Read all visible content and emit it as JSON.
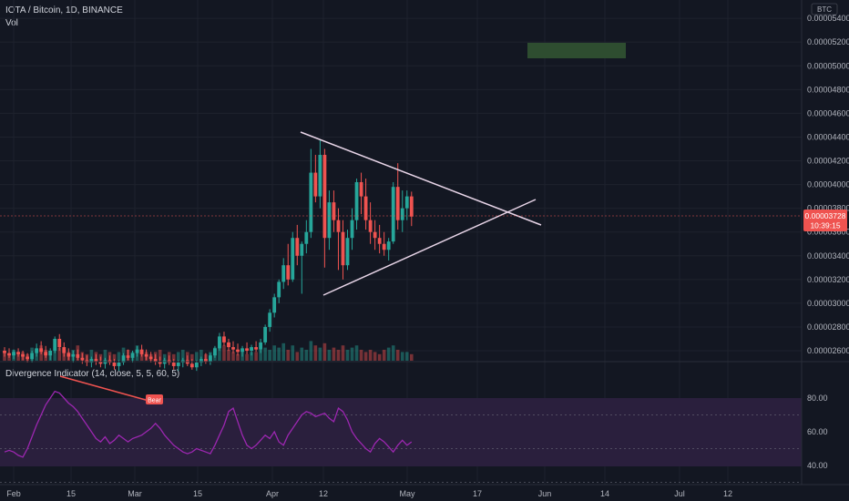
{
  "header": {
    "symbol": "IOTA / Bitcoin, 1D, BINANCE",
    "volume_label": "Vol",
    "currency": "BTC"
  },
  "price_badge": {
    "price": "0.00003728",
    "countdown": "10:39:15"
  },
  "indicator": {
    "label": "Divergence Indicator (14, close, 5, 5, 60, 5)",
    "signal_label": "Bear"
  },
  "colors": {
    "up": "#26a69a",
    "down": "#ef5350",
    "osc_line": "#9c27b0",
    "trendline": "#e8d5e8",
    "divergence": "#ef5350",
    "target_zone": "#2e4d30"
  },
  "chart_data": [
    {
      "type": "candlestick",
      "x_ticks": [
        "Feb",
        "15",
        "Mar",
        "15",
        "Apr",
        "12",
        "May",
        "17",
        "Jun",
        "14",
        "Jul",
        "12"
      ],
      "y_ticks": [
        "0.00002600",
        "0.00002800",
        "0.00003000",
        "0.00003200",
        "0.00003400",
        "0.00003600",
        "0.00003800",
        "0.00004000",
        "0.00004200",
        "0.00004400",
        "0.00004600",
        "0.00004800",
        "0.00005000",
        "0.00005200",
        "0.00005400"
      ],
      "ylim": [
        2.55e-05,
        5.45e-05
      ],
      "day_index_note": "day 0 = Feb 1",
      "candles": [
        {
          "d": 0,
          "o": 2.6,
          "h": 2.63,
          "l": 2.55,
          "c": 2.58
        },
        {
          "d": 1,
          "o": 2.58,
          "h": 2.62,
          "l": 2.54,
          "c": 2.56
        },
        {
          "d": 2,
          "o": 2.56,
          "h": 2.61,
          "l": 2.53,
          "c": 2.59
        },
        {
          "d": 3,
          "o": 2.59,
          "h": 2.62,
          "l": 2.55,
          "c": 2.57
        },
        {
          "d": 4,
          "o": 2.57,
          "h": 2.6,
          "l": 2.52,
          "c": 2.55
        },
        {
          "d": 5,
          "o": 2.55,
          "h": 2.58,
          "l": 2.5,
          "c": 2.53
        },
        {
          "d": 6,
          "o": 2.53,
          "h": 2.6,
          "l": 2.5,
          "c": 2.58
        },
        {
          "d": 7,
          "o": 2.58,
          "h": 2.66,
          "l": 2.55,
          "c": 2.62
        },
        {
          "d": 8,
          "o": 2.62,
          "h": 2.68,
          "l": 2.57,
          "c": 2.59
        },
        {
          "d": 9,
          "o": 2.59,
          "h": 2.64,
          "l": 2.54,
          "c": 2.56
        },
        {
          "d": 10,
          "o": 2.56,
          "h": 2.62,
          "l": 2.52,
          "c": 2.6
        },
        {
          "d": 11,
          "o": 2.6,
          "h": 2.72,
          "l": 2.58,
          "c": 2.7
        },
        {
          "d": 12,
          "o": 2.7,
          "h": 2.74,
          "l": 2.6,
          "c": 2.63
        },
        {
          "d": 13,
          "o": 2.63,
          "h": 2.67,
          "l": 2.55,
          "c": 2.58
        },
        {
          "d": 14,
          "o": 2.58,
          "h": 2.62,
          "l": 2.52,
          "c": 2.55
        },
        {
          "d": 15,
          "o": 2.55,
          "h": 2.6,
          "l": 2.5,
          "c": 2.57
        },
        {
          "d": 16,
          "o": 2.57,
          "h": 2.61,
          "l": 2.52,
          "c": 2.54
        },
        {
          "d": 17,
          "o": 2.54,
          "h": 2.58,
          "l": 2.49,
          "c": 2.52
        },
        {
          "d": 18,
          "o": 2.52,
          "h": 2.56,
          "l": 2.47,
          "c": 2.5
        },
        {
          "d": 19,
          "o": 2.5,
          "h": 2.55,
          "l": 2.46,
          "c": 2.53
        },
        {
          "d": 20,
          "o": 2.53,
          "h": 2.57,
          "l": 2.48,
          "c": 2.51
        },
        {
          "d": 21,
          "o": 2.51,
          "h": 2.55,
          "l": 2.46,
          "c": 2.49
        },
        {
          "d": 22,
          "o": 2.49,
          "h": 2.54,
          "l": 2.45,
          "c": 2.52
        },
        {
          "d": 23,
          "o": 2.52,
          "h": 2.56,
          "l": 2.48,
          "c": 2.5
        },
        {
          "d": 24,
          "o": 2.5,
          "h": 2.53,
          "l": 2.44,
          "c": 2.47
        },
        {
          "d": 25,
          "o": 2.47,
          "h": 2.52,
          "l": 2.43,
          "c": 2.5
        },
        {
          "d": 26,
          "o": 2.5,
          "h": 2.58,
          "l": 2.48,
          "c": 2.56
        },
        {
          "d": 27,
          "o": 2.56,
          "h": 2.61,
          "l": 2.52,
          "c": 2.54
        },
        {
          "d": 28,
          "o": 2.54,
          "h": 2.6,
          "l": 2.5,
          "c": 2.58
        },
        {
          "d": 29,
          "o": 2.58,
          "h": 2.64,
          "l": 2.55,
          "c": 2.61
        },
        {
          "d": 30,
          "o": 2.61,
          "h": 2.65,
          "l": 2.55,
          "c": 2.57
        },
        {
          "d": 31,
          "o": 2.57,
          "h": 2.61,
          "l": 2.52,
          "c": 2.55
        },
        {
          "d": 32,
          "o": 2.55,
          "h": 2.59,
          "l": 2.5,
          "c": 2.53
        },
        {
          "d": 33,
          "o": 2.53,
          "h": 2.57,
          "l": 2.48,
          "c": 2.51
        },
        {
          "d": 34,
          "o": 2.51,
          "h": 2.55,
          "l": 2.46,
          "c": 2.49
        },
        {
          "d": 35,
          "o": 2.49,
          "h": 2.54,
          "l": 2.45,
          "c": 2.52
        },
        {
          "d": 36,
          "o": 2.52,
          "h": 2.56,
          "l": 2.48,
          "c": 2.5
        },
        {
          "d": 37,
          "o": 2.5,
          "h": 2.53,
          "l": 2.44,
          "c": 2.47
        },
        {
          "d": 38,
          "o": 2.47,
          "h": 2.52,
          "l": 2.43,
          "c": 2.5
        },
        {
          "d": 39,
          "o": 2.5,
          "h": 2.54,
          "l": 2.46,
          "c": 2.52
        },
        {
          "d": 40,
          "o": 2.52,
          "h": 2.56,
          "l": 2.47,
          "c": 2.49
        },
        {
          "d": 41,
          "o": 2.49,
          "h": 2.53,
          "l": 2.44,
          "c": 2.46
        },
        {
          "d": 42,
          "o": 2.46,
          "h": 2.52,
          "l": 2.43,
          "c": 2.5
        },
        {
          "d": 43,
          "o": 2.5,
          "h": 2.55,
          "l": 2.47,
          "c": 2.53
        },
        {
          "d": 44,
          "o": 2.53,
          "h": 2.58,
          "l": 2.49,
          "c": 2.51
        },
        {
          "d": 45,
          "o": 2.51,
          "h": 2.58,
          "l": 2.48,
          "c": 2.56
        },
        {
          "d": 46,
          "o": 2.56,
          "h": 2.64,
          "l": 2.54,
          "c": 2.62
        },
        {
          "d": 47,
          "o": 2.62,
          "h": 2.75,
          "l": 2.6,
          "c": 2.72
        },
        {
          "d": 48,
          "o": 2.72,
          "h": 2.76,
          "l": 2.64,
          "c": 2.67
        },
        {
          "d": 49,
          "o": 2.67,
          "h": 2.7,
          "l": 2.6,
          "c": 2.63
        },
        {
          "d": 50,
          "o": 2.63,
          "h": 2.68,
          "l": 2.58,
          "c": 2.61
        },
        {
          "d": 51,
          "o": 2.61,
          "h": 2.66,
          "l": 2.56,
          "c": 2.59
        },
        {
          "d": 52,
          "o": 2.59,
          "h": 2.64,
          "l": 2.55,
          "c": 2.62
        },
        {
          "d": 53,
          "o": 2.62,
          "h": 2.67,
          "l": 2.57,
          "c": 2.6
        },
        {
          "d": 54,
          "o": 2.6,
          "h": 2.65,
          "l": 2.56,
          "c": 2.63
        },
        {
          "d": 55,
          "o": 2.63,
          "h": 2.68,
          "l": 2.59,
          "c": 2.61
        },
        {
          "d": 56,
          "o": 2.61,
          "h": 2.7,
          "l": 2.58,
          "c": 2.67
        },
        {
          "d": 57,
          "o": 2.67,
          "h": 2.82,
          "l": 2.65,
          "c": 2.8
        },
        {
          "d": 58,
          "o": 2.8,
          "h": 2.95,
          "l": 2.76,
          "c": 2.92
        },
        {
          "d": 59,
          "o": 2.92,
          "h": 3.08,
          "l": 2.88,
          "c": 3.05
        },
        {
          "d": 60,
          "o": 3.05,
          "h": 3.2,
          "l": 3.0,
          "c": 3.18
        },
        {
          "d": 61,
          "o": 3.18,
          "h": 3.38,
          "l": 3.12,
          "c": 3.32
        },
        {
          "d": 62,
          "o": 3.32,
          "h": 3.5,
          "l": 3.15,
          "c": 3.2
        },
        {
          "d": 63,
          "o": 3.2,
          "h": 3.6,
          "l": 3.18,
          "c": 3.55
        },
        {
          "d": 64,
          "o": 3.55,
          "h": 3.66,
          "l": 3.32,
          "c": 3.4
        },
        {
          "d": 65,
          "o": 3.4,
          "h": 3.52,
          "l": 3.08,
          "c": 3.5
        },
        {
          "d": 66,
          "o": 3.5,
          "h": 3.7,
          "l": 3.42,
          "c": 3.6
        },
        {
          "d": 67,
          "o": 3.6,
          "h": 4.3,
          "l": 3.55,
          "c": 4.1
        },
        {
          "d": 68,
          "o": 4.1,
          "h": 4.25,
          "l": 3.85,
          "c": 3.9
        },
        {
          "d": 69,
          "o": 3.9,
          "h": 4.38,
          "l": 3.8,
          "c": 4.25
        },
        {
          "d": 70,
          "o": 4.25,
          "h": 4.3,
          "l": 3.3,
          "c": 3.55
        },
        {
          "d": 71,
          "o": 3.55,
          "h": 3.95,
          "l": 3.45,
          "c": 3.85
        },
        {
          "d": 72,
          "o": 3.85,
          "h": 3.95,
          "l": 3.6,
          "c": 3.7
        },
        {
          "d": 73,
          "o": 3.7,
          "h": 3.8,
          "l": 3.28,
          "c": 3.6
        },
        {
          "d": 74,
          "o": 3.6,
          "h": 3.7,
          "l": 3.2,
          "c": 3.32
        },
        {
          "d": 75,
          "o": 3.32,
          "h": 3.62,
          "l": 3.28,
          "c": 3.55
        },
        {
          "d": 76,
          "o": 3.55,
          "h": 3.8,
          "l": 3.45,
          "c": 3.7
        },
        {
          "d": 77,
          "o": 3.7,
          "h": 4.05,
          "l": 3.62,
          "c": 4.02
        },
        {
          "d": 78,
          "o": 4.02,
          "h": 4.1,
          "l": 3.75,
          "c": 3.9
        },
        {
          "d": 79,
          "o": 3.9,
          "h": 4.05,
          "l": 3.62,
          "c": 3.7
        },
        {
          "d": 80,
          "o": 3.7,
          "h": 3.85,
          "l": 3.5,
          "c": 3.6
        },
        {
          "d": 81,
          "o": 3.6,
          "h": 3.7,
          "l": 3.45,
          "c": 3.55
        },
        {
          "d": 82,
          "o": 3.55,
          "h": 3.66,
          "l": 3.42,
          "c": 3.5
        },
        {
          "d": 83,
          "o": 3.5,
          "h": 3.6,
          "l": 3.4,
          "c": 3.45
        },
        {
          "d": 84,
          "o": 3.45,
          "h": 3.55,
          "l": 3.36,
          "c": 3.52
        },
        {
          "d": 85,
          "o": 3.52,
          "h": 4.02,
          "l": 3.5,
          "c": 3.98
        },
        {
          "d": 86,
          "o": 3.98,
          "h": 4.18,
          "l": 3.62,
          "c": 3.7
        },
        {
          "d": 87,
          "o": 3.7,
          "h": 3.95,
          "l": 3.6,
          "c": 3.8
        },
        {
          "d": 88,
          "o": 3.8,
          "h": 3.95,
          "l": 3.7,
          "c": 3.9
        },
        {
          "d": 89,
          "o": 3.9,
          "h": 3.94,
          "l": 3.65,
          "c": 3.73
        }
      ],
      "volume": [
        4,
        3,
        5,
        3,
        4,
        3,
        6,
        4,
        7,
        5,
        4,
        8,
        6,
        5,
        4,
        5,
        7,
        4,
        3,
        5,
        4,
        3,
        5,
        4,
        3,
        4,
        6,
        5,
        4,
        7,
        5,
        4,
        3,
        4,
        5,
        3,
        4,
        3,
        4,
        5,
        4,
        3,
        4,
        5,
        3,
        4,
        6,
        9,
        7,
        5,
        4,
        3,
        4,
        3,
        4,
        4,
        5,
        6,
        5,
        7,
        6,
        8,
        5,
        7,
        4,
        6,
        5,
        9,
        7,
        6,
        8,
        5,
        6,
        5,
        7,
        5,
        6,
        7,
        5,
        4,
        5,
        4,
        3,
        5,
        6,
        7,
        5,
        4,
        4,
        3
      ]
    },
    {
      "type": "line",
      "name": "Divergence Indicator (14, close, 5, 5, 60, 5)",
      "y_ticks": [
        "40.00",
        "60.00",
        "80.00"
      ],
      "ylim": [
        28,
        88
      ],
      "bands": [
        30,
        50,
        70
      ],
      "values": [
        48,
        49,
        48,
        46,
        45,
        50,
        57,
        64,
        70,
        76,
        80,
        84,
        83,
        80,
        77,
        75,
        72,
        68,
        64,
        60,
        56,
        54,
        57,
        53,
        55,
        58,
        56,
        54,
        56,
        57,
        58,
        60,
        62,
        65,
        62,
        58,
        55,
        52,
        50,
        48,
        47,
        48,
        50,
        49,
        48,
        47,
        52,
        58,
        64,
        72,
        74,
        66,
        58,
        52,
        50,
        52,
        55,
        58,
        56,
        60,
        54,
        52,
        58,
        62,
        66,
        70,
        72,
        71,
        69,
        70,
        71,
        68,
        66,
        74,
        72,
        67,
        60,
        56,
        53,
        50,
        48,
        53,
        56,
        54,
        51,
        48,
        52,
        55,
        52,
        54
      ]
    }
  ]
}
